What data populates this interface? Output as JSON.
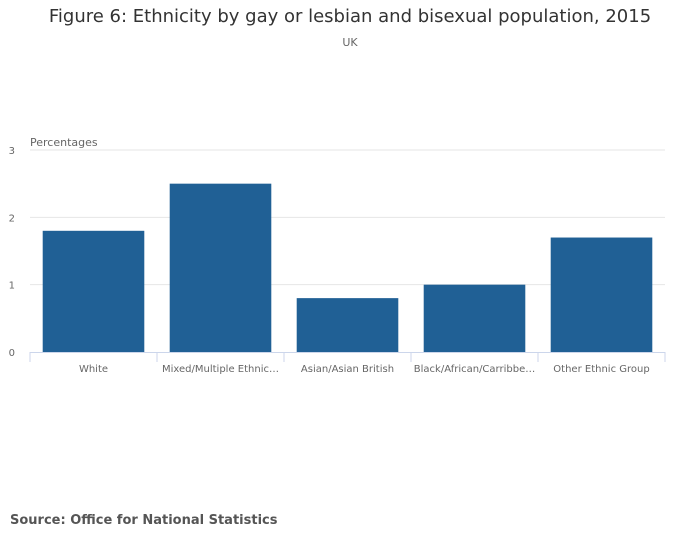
{
  "chart_data": {
    "type": "bar",
    "title": "Figure 6: Ethnicity by gay or lesbian and bisexual population, 2015",
    "subtitle": "UK",
    "ylabel": "Percentages",
    "xlabel": "",
    "categories": [
      "White",
      "Mixed/Multiple Ethnic…",
      "Asian/Asian British",
      "Black/African/Carribbe…",
      "Other Ethnic Group"
    ],
    "values": [
      1.8,
      2.5,
      0.8,
      1.0,
      1.7
    ],
    "ylim": [
      0,
      3
    ],
    "yticks": [
      0,
      1,
      2,
      3
    ],
    "grid": true,
    "bar_color": "#206095",
    "source": "Source: Office for National Statistics"
  }
}
